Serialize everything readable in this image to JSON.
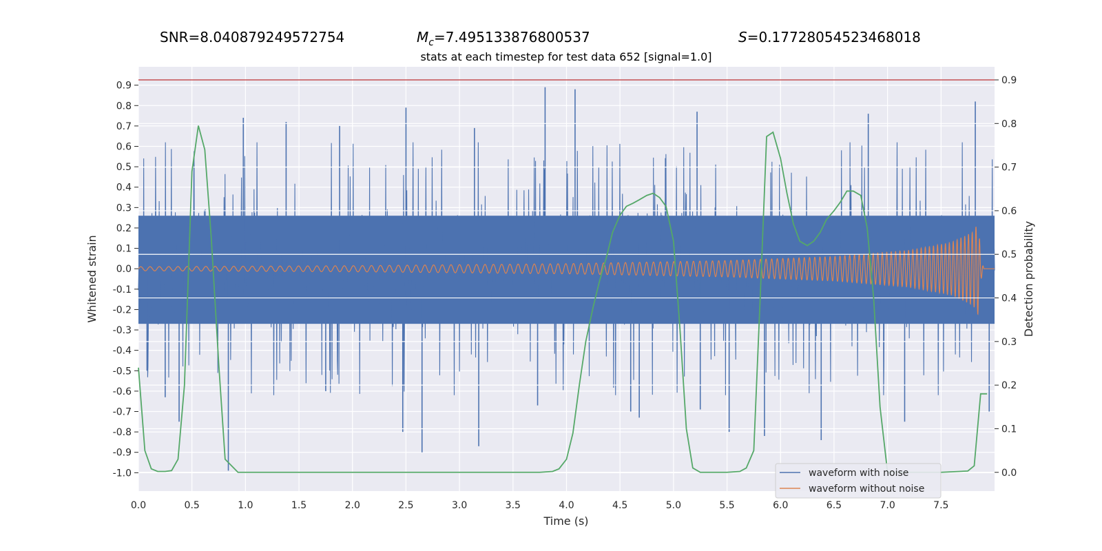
{
  "chart_data": {
    "type": "line",
    "header": {
      "snr_text": "SNR=8.040879249572754",
      "mc_symbol": "M",
      "mc_subscript": "c",
      "mc_value": "=7.495133876800537",
      "s_symbol": "S",
      "s_value": "=0.17728054523468018"
    },
    "title": "stats at each timestep for test data 652 [signal=1.0]",
    "xlabel": "Time (s)",
    "ylabel": "Whitened strain",
    "y2label": "Detection probability",
    "xlim": [
      0.0,
      8.0
    ],
    "ylim": [
      -1.09,
      0.99
    ],
    "y2lim": [
      -0.043,
      0.93
    ],
    "xticks": [
      "0.0",
      "0.5",
      "1.0",
      "1.5",
      "2.0",
      "2.5",
      "3.0",
      "3.5",
      "4.0",
      "4.5",
      "5.0",
      "5.5",
      "6.0",
      "6.5",
      "7.0",
      "7.5"
    ],
    "yticks": [
      "0.9",
      "0.8",
      "0.7",
      "0.6",
      "0.5",
      "0.4",
      "0.3",
      "0.2",
      "0.1",
      "0.0",
      "-0.1",
      "-0.2",
      "-0.3",
      "-0.4",
      "-0.5",
      "-0.6",
      "-0.7",
      "-0.8",
      "-0.9",
      "-1.0"
    ],
    "y2ticks": [
      "0.9",
      "0.8",
      "0.7",
      "0.6",
      "0.5",
      "0.4",
      "0.3",
      "0.2",
      "0.1",
      "0.0"
    ],
    "threshold": {
      "value": 0.9,
      "axis": "right",
      "color": "#c44e52"
    },
    "legend": {
      "position": "lower-right",
      "entries": [
        "waveform with noise",
        "waveform without noise"
      ]
    },
    "series": [
      {
        "name": "waveform with noise",
        "color": "#4c72b0",
        "axis": "left",
        "description": "dense whitened noise, envelope ~ +/-0.25 with spikes",
        "typical_band": [
          -0.28,
          0.27
        ],
        "spikes": [
          {
            "t": 0.08,
            "v": -0.5
          },
          {
            "t": 0.25,
            "v": -0.63
          },
          {
            "t": 0.38,
            "v": -0.75
          },
          {
            "t": 0.84,
            "v": -0.99
          },
          {
            "t": 0.98,
            "v": 0.74
          },
          {
            "t": 1.38,
            "v": 0.72
          },
          {
            "t": 1.75,
            "v": -0.6
          },
          {
            "t": 1.88,
            "v": 0.7
          },
          {
            "t": 2.47,
            "v": -0.8
          },
          {
            "t": 2.5,
            "v": 0.79
          },
          {
            "t": 2.65,
            "v": -0.9
          },
          {
            "t": 3.14,
            "v": 0.69
          },
          {
            "t": 3.18,
            "v": -0.87
          },
          {
            "t": 3.8,
            "v": 0.89
          },
          {
            "t": 3.73,
            "v": -0.67
          },
          {
            "t": 4.08,
            "v": 0.88
          },
          {
            "t": 4.6,
            "v": -0.7
          },
          {
            "t": 4.68,
            "v": -0.73
          },
          {
            "t": 5.25,
            "v": -0.69
          },
          {
            "t": 5.22,
            "v": 0.77
          },
          {
            "t": 5.52,
            "v": -0.8
          },
          {
            "t": 5.85,
            "v": -0.82
          },
          {
            "t": 6.38,
            "v": -0.84
          },
          {
            "t": 6.82,
            "v": 0.76
          },
          {
            "t": 7.16,
            "v": -0.75
          },
          {
            "t": 7.82,
            "v": 0.82
          },
          {
            "t": 7.95,
            "v": -0.7
          }
        ]
      },
      {
        "name": "waveform without noise",
        "color": "#dd8452",
        "axis": "left",
        "description": "chirp signal, amplitude grows toward merger then decays",
        "amplitude_points": [
          [
            0.0,
            0.01
          ],
          [
            2.0,
            0.015
          ],
          [
            4.0,
            0.025
          ],
          [
            5.5,
            0.04
          ],
          [
            6.5,
            0.06
          ],
          [
            7.2,
            0.09
          ],
          [
            7.6,
            0.13
          ],
          [
            7.8,
            0.18
          ],
          [
            7.85,
            0.23
          ],
          [
            7.87,
            0.06
          ],
          [
            7.9,
            0.0
          ]
        ],
        "end_time": 7.9
      },
      {
        "name": "detection probability",
        "color": "#55a868",
        "axis": "right",
        "x": [
          0.0,
          0.06,
          0.12,
          0.18,
          0.25,
          0.31,
          0.37,
          0.43,
          0.5,
          0.56,
          0.62,
          0.68,
          0.75,
          0.81,
          0.87,
          0.93,
          1.0,
          1.5,
          2.0,
          2.5,
          3.0,
          3.5,
          3.75,
          3.87,
          3.93,
          4.0,
          4.06,
          4.12,
          4.18,
          4.25,
          4.31,
          4.37,
          4.43,
          4.5,
          4.56,
          4.62,
          4.68,
          4.75,
          4.81,
          4.87,
          4.93,
          5.0,
          5.06,
          5.12,
          5.18,
          5.25,
          5.5,
          5.62,
          5.68,
          5.75,
          5.81,
          5.87,
          5.93,
          6.0,
          6.06,
          6.12,
          6.18,
          6.25,
          6.31,
          6.37,
          6.43,
          6.5,
          6.56,
          6.62,
          6.68,
          6.75,
          6.81,
          6.87,
          6.93,
          7.0,
          7.5,
          7.75,
          7.81,
          7.87,
          7.93
        ],
        "values": [
          0.24,
          0.05,
          0.008,
          0.002,
          0.002,
          0.004,
          0.03,
          0.2,
          0.69,
          0.795,
          0.74,
          0.54,
          0.25,
          0.03,
          0.015,
          0.0,
          0.0,
          0.0,
          0.0,
          0.0,
          0.0,
          0.0,
          0.0,
          0.002,
          0.008,
          0.03,
          0.09,
          0.2,
          0.3,
          0.38,
          0.44,
          0.49,
          0.55,
          0.59,
          0.61,
          0.617,
          0.625,
          0.635,
          0.64,
          0.63,
          0.61,
          0.53,
          0.33,
          0.1,
          0.01,
          0.0,
          0.0,
          0.002,
          0.01,
          0.05,
          0.4,
          0.77,
          0.78,
          0.72,
          0.64,
          0.57,
          0.53,
          0.52,
          0.53,
          0.55,
          0.58,
          0.6,
          0.62,
          0.645,
          0.645,
          0.635,
          0.56,
          0.4,
          0.15,
          0.0,
          0.0,
          0.003,
          0.015,
          0.18,
          0.18
        ]
      }
    ]
  }
}
